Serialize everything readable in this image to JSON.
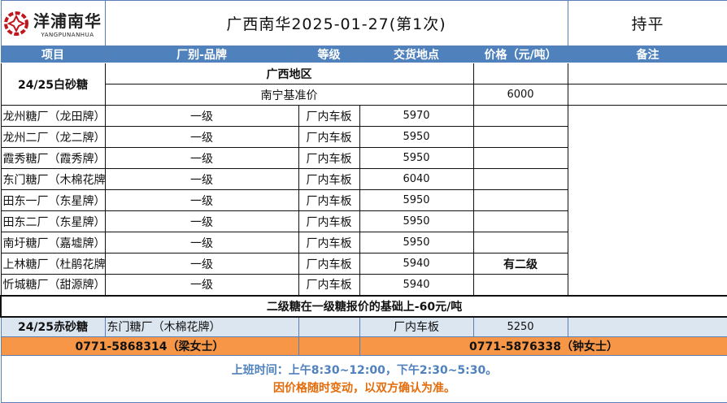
{
  "logo": {
    "cn": "洋浦南华",
    "en": "YANGPUNANHUA",
    "color": "#c0161e"
  },
  "header": {
    "title": "广西南华2025-01-27(第1次)",
    "trend": "持平"
  },
  "columns": [
    "项目",
    "厂别-品牌",
    "等级",
    "交货地点",
    "价格（元/吨）",
    "备注"
  ],
  "region": "广西地区",
  "base": {
    "label": "南宁基准价",
    "price": "6000"
  },
  "category1": "24/25白砂糖",
  "rows": [
    {
      "factory": "龙州糖厂（龙田牌）",
      "grade": "一级",
      "delivery": "厂内车板",
      "price": "5970",
      "note": ""
    },
    {
      "factory": "龙州二厂（龙二牌）",
      "grade": "一级",
      "delivery": "厂内车板",
      "price": "5950",
      "note": ""
    },
    {
      "factory": "霞秀糖厂（霞秀牌）",
      "grade": "一级",
      "delivery": "厂内车板",
      "price": "5950",
      "note": ""
    },
    {
      "factory": "东门糖厂（木棉花牌）",
      "grade": "一级",
      "delivery": "厂内车板",
      "price": "6040",
      "note": ""
    },
    {
      "factory": "田东一厂（东星牌）",
      "grade": "一级",
      "delivery": "厂内车板",
      "price": "5950",
      "note": ""
    },
    {
      "factory": "田东二厂（东星牌）",
      "grade": "一级",
      "delivery": "厂内车板",
      "price": "5950",
      "note": ""
    },
    {
      "factory": "南圩糖厂（嘉墟牌）",
      "grade": "一级",
      "delivery": "厂内车板",
      "price": "5950",
      "note": ""
    },
    {
      "factory": "上林糖厂（杜鹃花牌）",
      "grade": "一级",
      "delivery": "厂内车板",
      "price": "5940",
      "note": "有二级"
    },
    {
      "factory": "忻城糖厂（甜源牌）",
      "grade": "一级",
      "delivery": "厂内车板",
      "price": "5940",
      "note": ""
    }
  ],
  "grade_note": "二级糖在一级糖报价的基础上-60元/吨",
  "red_sugar": {
    "category": "24/25赤砂糖",
    "factory": "东门糖厂（木棉花牌）",
    "grade": "",
    "delivery": "厂内车板",
    "price": "5250",
    "note": ""
  },
  "contacts": [
    "0771-5868314（梁女士）",
    "0771-5876338（钟女士）"
  ],
  "footer": {
    "hours": "上班时间：上午8:30~12:00，下午2:30~5:30。",
    "disclaimer": "因价格随时变动，以双方确认为准。"
  },
  "colors": {
    "header_blue": "#4f81bd",
    "light_blue": "#dce6f1",
    "orange": "#f79646",
    "disclaimer": "#e46c0a"
  }
}
